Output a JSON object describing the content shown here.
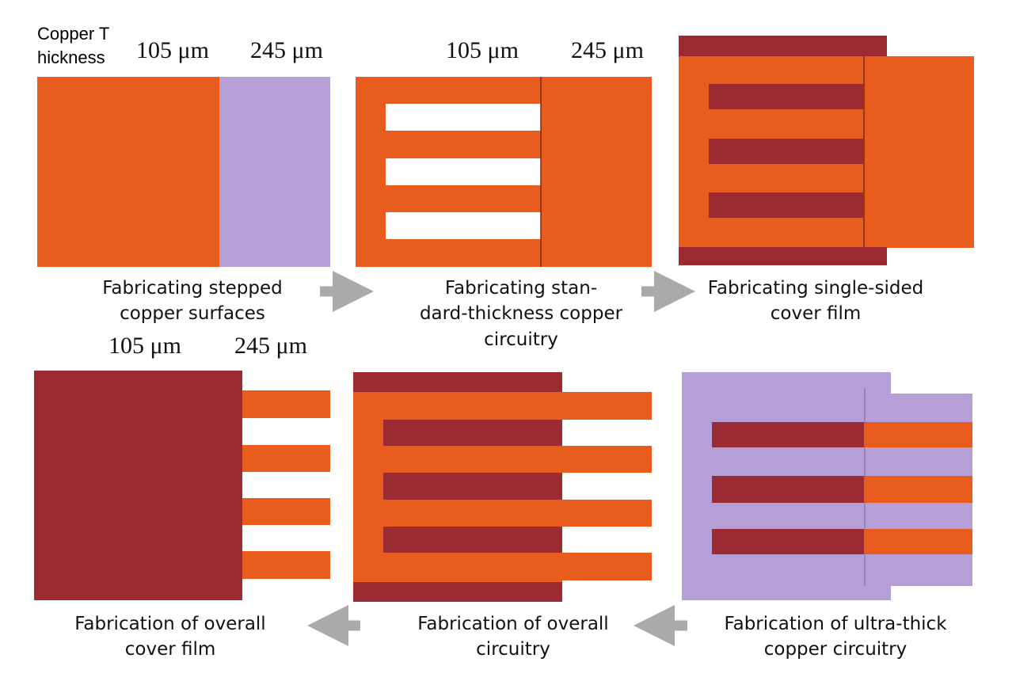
{
  "thickness_label": [
    "Copper T",
    "hickness"
  ],
  "panels": [
    {
      "dimensions": [
        "105 μm",
        "245 μm"
      ],
      "caption": [
        "Fabricating stepped",
        "copper surfaces"
      ]
    },
    {
      "dimensions": [
        "105 μm",
        "245 μm"
      ],
      "caption": [
        "Fabricating stan-",
        "dard-thickness copper",
        "circuitry"
      ]
    },
    {
      "caption": [
        "Fabricating single-sided",
        "cover film"
      ]
    },
    {
      "dimensions": [
        "105 μm",
        "245 μm"
      ],
      "caption": [
        "Fabrication of overall",
        "cover film"
      ]
    },
    {
      "caption": [
        "Fabrication of overall",
        "circuitry"
      ]
    },
    {
      "caption": [
        "Fabrication of ultra-thick",
        "copper circuitry"
      ]
    }
  ]
}
